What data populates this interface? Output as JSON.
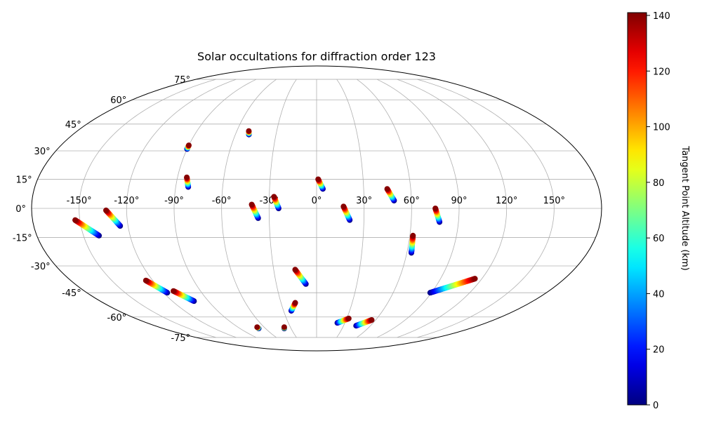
{
  "chart_data": {
    "type": "scatter",
    "projection": "mollweide",
    "title": "Solar occultations for diffraction order 123",
    "grid": true,
    "longitude_ticks": [
      {
        "value": -150,
        "label": "-150°"
      },
      {
        "value": -120,
        "label": "-120°"
      },
      {
        "value": -90,
        "label": "-90°"
      },
      {
        "value": -60,
        "label": "-60°"
      },
      {
        "value": -30,
        "label": "-30°"
      },
      {
        "value": 0,
        "label": "0°"
      },
      {
        "value": 30,
        "label": "30°"
      },
      {
        "value": 60,
        "label": "60°"
      },
      {
        "value": 90,
        "label": "90°"
      },
      {
        "value": 120,
        "label": "120°"
      },
      {
        "value": 150,
        "label": "150°"
      }
    ],
    "latitude_ticks": [
      {
        "value": 75,
        "label": "75°"
      },
      {
        "value": 60,
        "label": "60°"
      },
      {
        "value": 45,
        "label": "45°"
      },
      {
        "value": 30,
        "label": "30°"
      },
      {
        "value": 15,
        "label": "15°"
      },
      {
        "value": 0,
        "label": "0°"
      },
      {
        "value": -15,
        "label": "-15°"
      },
      {
        "value": -30,
        "label": "-30°"
      },
      {
        "value": -45,
        "label": "-45°"
      },
      {
        "value": -60,
        "label": "-60°"
      },
      {
        "value": -75,
        "label": "-75°"
      }
    ],
    "colorbar": {
      "label": "Tangent Point Altitude (km)",
      "range": [
        0,
        141
      ],
      "colormap": "jet",
      "ticks": [
        {
          "value": 0,
          "label": "0"
        },
        {
          "value": 20,
          "label": "20"
        },
        {
          "value": 40,
          "label": "40"
        },
        {
          "value": 60,
          "label": "60"
        },
        {
          "value": 80,
          "label": "80"
        },
        {
          "value": 100,
          "label": "100"
        },
        {
          "value": 120,
          "label": "120"
        },
        {
          "value": 140,
          "label": "140"
        }
      ]
    },
    "occultations": [
      {
        "top": [
          -90,
          33
        ],
        "bottom": [
          -90,
          31
        ],
        "top_alt": 140,
        "bottom_alt": 0
      },
      {
        "top": [
          -51,
          41
        ],
        "bottom": [
          -50,
          39
        ],
        "top_alt": 140,
        "bottom_alt": 0
      },
      {
        "top": [
          -84,
          16
        ],
        "bottom": [
          -82,
          11
        ],
        "top_alt": 140,
        "bottom_alt": 0
      },
      {
        "top": [
          1,
          15
        ],
        "bottom": [
          4,
          10
        ],
        "top_alt": 140,
        "bottom_alt": 0
      },
      {
        "top": [
          45,
          10
        ],
        "bottom": [
          49,
          4
        ],
        "top_alt": 140,
        "bottom_alt": 0
      },
      {
        "top": [
          -27,
          6
        ],
        "bottom": [
          -24,
          0
        ],
        "top_alt": 140,
        "bottom_alt": 0
      },
      {
        "top": [
          -41,
          2
        ],
        "bottom": [
          -37,
          -5
        ],
        "top_alt": 140,
        "bottom_alt": 0
      },
      {
        "top": [
          17,
          1
        ],
        "bottom": [
          21,
          -6
        ],
        "top_alt": 140,
        "bottom_alt": 0
      },
      {
        "top": [
          75,
          0
        ],
        "bottom": [
          78,
          -7
        ],
        "top_alt": 140,
        "bottom_alt": 0
      },
      {
        "top": [
          -133,
          -1
        ],
        "bottom": [
          -125,
          -9
        ],
        "top_alt": 140,
        "bottom_alt": 0
      },
      {
        "top": [
          -153,
          -6
        ],
        "bottom": [
          -140,
          -14
        ],
        "top_alt": 140,
        "bottom_alt": 0
      },
      {
        "top": [
          62,
          -14
        ],
        "bottom": [
          63,
          -23
        ],
        "top_alt": 140,
        "bottom_alt": 0
      },
      {
        "top": [
          -15,
          -32
        ],
        "bottom": [
          -8,
          -40
        ],
        "top_alt": 140,
        "bottom_alt": 0
      },
      {
        "top": [
          -125,
          -38
        ],
        "bottom": [
          -117,
          -45
        ],
        "top_alt": 140,
        "bottom_alt": 0
      },
      {
        "top": [
          -111,
          -44
        ],
        "bottom": [
          -102,
          -50
        ],
        "top_alt": 140,
        "bottom_alt": 0
      },
      {
        "top": [
          -18,
          -51
        ],
        "bottom": [
          -23,
          -56
        ],
        "top_alt": 140,
        "bottom_alt": 0
      },
      {
        "top": [
          115,
          -37
        ],
        "bottom": [
          89,
          -45
        ],
        "top_alt": 140,
        "bottom_alt": 0
      },
      {
        "top": [
          -68,
          -67
        ],
        "bottom": [
          -68,
          -68
        ],
        "top_alt": 140,
        "bottom_alt": 0
      },
      {
        "top": [
          -37,
          -67
        ],
        "bottom": [
          -38,
          -68
        ],
        "top_alt": 140,
        "bottom_alt": 0
      },
      {
        "top": [
          32,
          -61
        ],
        "bottom": [
          22,
          -64
        ],
        "top_alt": 140,
        "bottom_alt": 0
      },
      {
        "top": [
          56,
          -62
        ],
        "bottom": [
          44,
          -66
        ],
        "top_alt": 140,
        "bottom_alt": 0
      }
    ]
  }
}
